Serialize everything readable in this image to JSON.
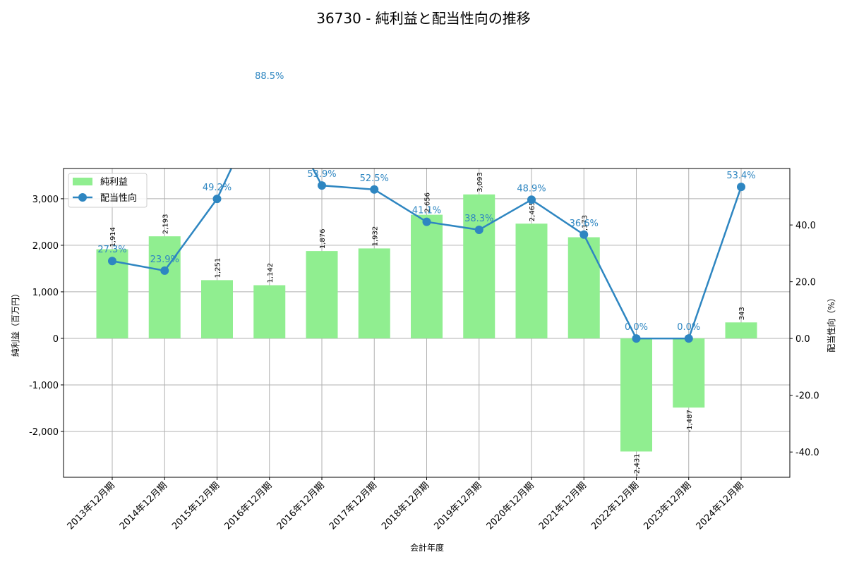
{
  "chart_data": {
    "type": "bar+line",
    "title": "36730 - 純利益と配当性向の推移",
    "xlabel": "会計年度",
    "ylabel_left": "純利益（百万円）",
    "ylabel_right": "配当性向（%）",
    "categories": [
      "2013年12月期",
      "2014年12月期",
      "2015年12月期",
      "2016年12月期",
      "2016年12月期",
      "2017年12月期",
      "2018年12月期",
      "2019年12月期",
      "2020年12月期",
      "2021年12月期",
      "2022年12月期",
      "2023年12月期",
      "2024年12月期"
    ],
    "series": [
      {
        "name": "純利益",
        "type": "bar",
        "axis": "left",
        "color": "#90ee90",
        "values": [
          1914,
          2193,
          1251,
          1142,
          1876,
          1932,
          2656,
          3093,
          2465,
          2173,
          -2431,
          -1487,
          343
        ],
        "labels": [
          "1,914",
          "2,193",
          "1,251",
          "1,142",
          "1,876",
          "1,932",
          "2,656",
          "3,093",
          "2,465",
          "2,173",
          "-2,431",
          "-1,487",
          "343"
        ]
      },
      {
        "name": "配当性向",
        "type": "line",
        "axis": "right",
        "color": "#2e86c1",
        "values": [
          27.3,
          23.9,
          49.2,
          88.5,
          53.9,
          52.5,
          41.1,
          38.3,
          48.9,
          36.6,
          0.0,
          0.0,
          53.4
        ],
        "labels": [
          "27.3%",
          "23.9%",
          "49.2%",
          "88.5%",
          "53.9%",
          "52.5%",
          "41.1%",
          "38.3%",
          "48.9%",
          "36.6%",
          "0.0%",
          "0.0%",
          "53.4%"
        ]
      }
    ],
    "ylim_left": [
      -2985,
      3650
    ],
    "ylim_right": [
      -48.9,
      59.9
    ],
    "yticks_left": [
      -2000,
      -1000,
      0,
      1000,
      2000,
      3000
    ],
    "yticks_left_labels": [
      "-2,000",
      "-1,000",
      "0",
      "1,000",
      "2,000",
      "3,000"
    ],
    "yticks_right": [
      -40,
      -20,
      0,
      20,
      40
    ],
    "yticks_right_labels": [
      "-40.0",
      "-20.0",
      "0.0",
      "20.0",
      "40.0"
    ],
    "grid": true,
    "legend": {
      "position": "upper left",
      "entries": [
        "純利益",
        "配当性向"
      ]
    }
  }
}
